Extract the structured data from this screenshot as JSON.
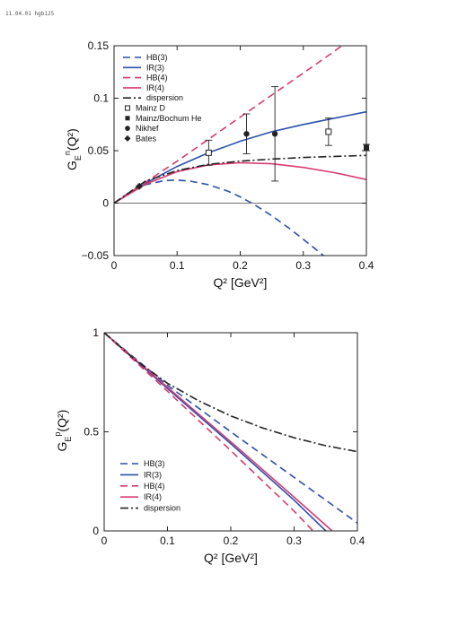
{
  "header": {
    "stamp": "11.04.01 hgb125"
  },
  "chart_data": [
    {
      "type": "line",
      "title": "",
      "xlabel": "Q² [GeV²]",
      "ylabel": "G_E^n(Q²)",
      "xlim": [
        0,
        0.4
      ],
      "ylim": [
        -0.05,
        0.15
      ],
      "xticks": [
        "0",
        "0.1",
        "0.2",
        "0.3",
        "0.4"
      ],
      "yticks": [
        "-0.05",
        "0",
        "0.05",
        "0.1",
        "0.15"
      ],
      "xtick_values": [
        0,
        0.1,
        0.2,
        0.3,
        0.4
      ],
      "ytick_values": [
        -0.05,
        0,
        0.05,
        0.1,
        0.15
      ],
      "grid": false,
      "legend_position": "top-left",
      "colors": {
        "blue": "#2b4fae",
        "red": "#d83a6e",
        "black": "#222222"
      },
      "series": [
        {
          "name": "HB(3)",
          "color": "#2b4fae",
          "dash": "dashed",
          "x": [
            0,
            0.02,
            0.05,
            0.08,
            0.1,
            0.12,
            0.15,
            0.18,
            0.2,
            0.22,
            0.25,
            0.28,
            0.3,
            0.33,
            0.36,
            0.38
          ],
          "y": [
            0,
            0.0085,
            0.0175,
            0.0215,
            0.022,
            0.021,
            0.0175,
            0.0115,
            0.006,
            -0.0005,
            -0.012,
            -0.025,
            -0.0345,
            -0.049,
            -0.064,
            -0.075
          ]
        },
        {
          "name": "IR(3)",
          "color": "#2b4fae",
          "dash": "solid",
          "x": [
            0,
            0.05,
            0.1,
            0.15,
            0.2,
            0.25,
            0.3,
            0.35,
            0.4
          ],
          "y": [
            0,
            0.019,
            0.035,
            0.048,
            0.059,
            0.068,
            0.075,
            0.081,
            0.087
          ]
        },
        {
          "name": "HB(4)",
          "color": "#d83a6e",
          "dash": "dashed",
          "x": [
            0,
            0.05,
            0.1,
            0.15,
            0.2,
            0.25,
            0.3,
            0.35,
            0.4
          ],
          "y": [
            0,
            0.02,
            0.04,
            0.061,
            0.082,
            0.103,
            0.124,
            0.145,
            0.168
          ]
        },
        {
          "name": "IR(4)",
          "color": "#d83a6e",
          "dash": "solid",
          "x": [
            0,
            0.05,
            0.1,
            0.15,
            0.2,
            0.25,
            0.3,
            0.35,
            0.4
          ],
          "y": [
            0,
            0.018,
            0.03,
            0.0365,
            0.0385,
            0.0375,
            0.034,
            0.029,
            0.0225
          ]
        },
        {
          "name": "dispersion",
          "color": "#222222",
          "dash": "dashdot",
          "x": [
            0,
            0.05,
            0.1,
            0.15,
            0.2,
            0.25,
            0.3,
            0.35,
            0.4
          ],
          "y": [
            0,
            0.021,
            0.031,
            0.037,
            0.04,
            0.042,
            0.0435,
            0.0445,
            0.0455
          ]
        }
      ],
      "points": [
        {
          "name": "Mainz D",
          "marker": "open-square",
          "data": [
            {
              "x": 0.15,
              "y": 0.048,
              "err": 0.012
            },
            {
              "x": 0.34,
              "y": 0.068,
              "err": 0.013
            }
          ]
        },
        {
          "name": "Mainz/Bochum He",
          "marker": "filled-square",
          "data": [
            {
              "x": 0.4,
              "y": 0.053,
              "err": 0.003
            }
          ]
        },
        {
          "name": "Nikhef",
          "marker": "filled-circle",
          "data": [
            {
              "x": 0.21,
              "y": 0.066,
              "err": 0.019
            },
            {
              "x": 0.255,
              "y": 0.066,
              "err": 0.045
            }
          ]
        },
        {
          "name": "Bates",
          "marker": "filled-diamond",
          "data": [
            {
              "x": 0.04,
              "y": 0.016,
              "err": 0.0
            }
          ]
        }
      ]
    },
    {
      "type": "line",
      "title": "",
      "xlabel": "Q² [GeV²]",
      "ylabel": "G_E^p(Q²)",
      "xlim": [
        0,
        0.4
      ],
      "ylim": [
        0,
        1
      ],
      "xticks": [
        "0",
        "0.1",
        "0.2",
        "0.3",
        "0.4"
      ],
      "yticks": [
        "0",
        "0.5",
        "1"
      ],
      "xtick_values": [
        0,
        0.1,
        0.2,
        0.3,
        0.4
      ],
      "ytick_values": [
        0,
        0.5,
        1
      ],
      "grid": false,
      "legend_position": "bottom-left",
      "series": [
        {
          "name": "HB(3)",
          "color": "#2b4fae",
          "dash": "dashed",
          "x": [
            0,
            0.1,
            0.2,
            0.3,
            0.4
          ],
          "y": [
            1,
            0.735,
            0.5,
            0.27,
            0.04
          ]
        },
        {
          "name": "IR(3)",
          "color": "#2b4fae",
          "dash": "solid",
          "x": [
            0,
            0.1,
            0.2,
            0.3,
            0.35
          ],
          "y": [
            1,
            0.718,
            0.44,
            0.155,
            0.0
          ]
        },
        {
          "name": "HB(4)",
          "color": "#d83a6e",
          "dash": "dashed",
          "x": [
            0,
            0.1,
            0.2,
            0.3,
            0.33
          ],
          "y": [
            1,
            0.705,
            0.405,
            0.1,
            0.0
          ]
        },
        {
          "name": "IR(4)",
          "color": "#d83a6e",
          "dash": "solid",
          "x": [
            0,
            0.1,
            0.2,
            0.3,
            0.36
          ],
          "y": [
            1,
            0.725,
            0.45,
            0.17,
            0.0
          ]
        },
        {
          "name": "dispersion",
          "color": "#222222",
          "dash": "dashdot",
          "x": [
            0,
            0.05,
            0.1,
            0.15,
            0.2,
            0.25,
            0.3,
            0.35,
            0.4
          ],
          "y": [
            1,
            0.86,
            0.745,
            0.655,
            0.58,
            0.52,
            0.47,
            0.43,
            0.4
          ]
        }
      ]
    }
  ]
}
